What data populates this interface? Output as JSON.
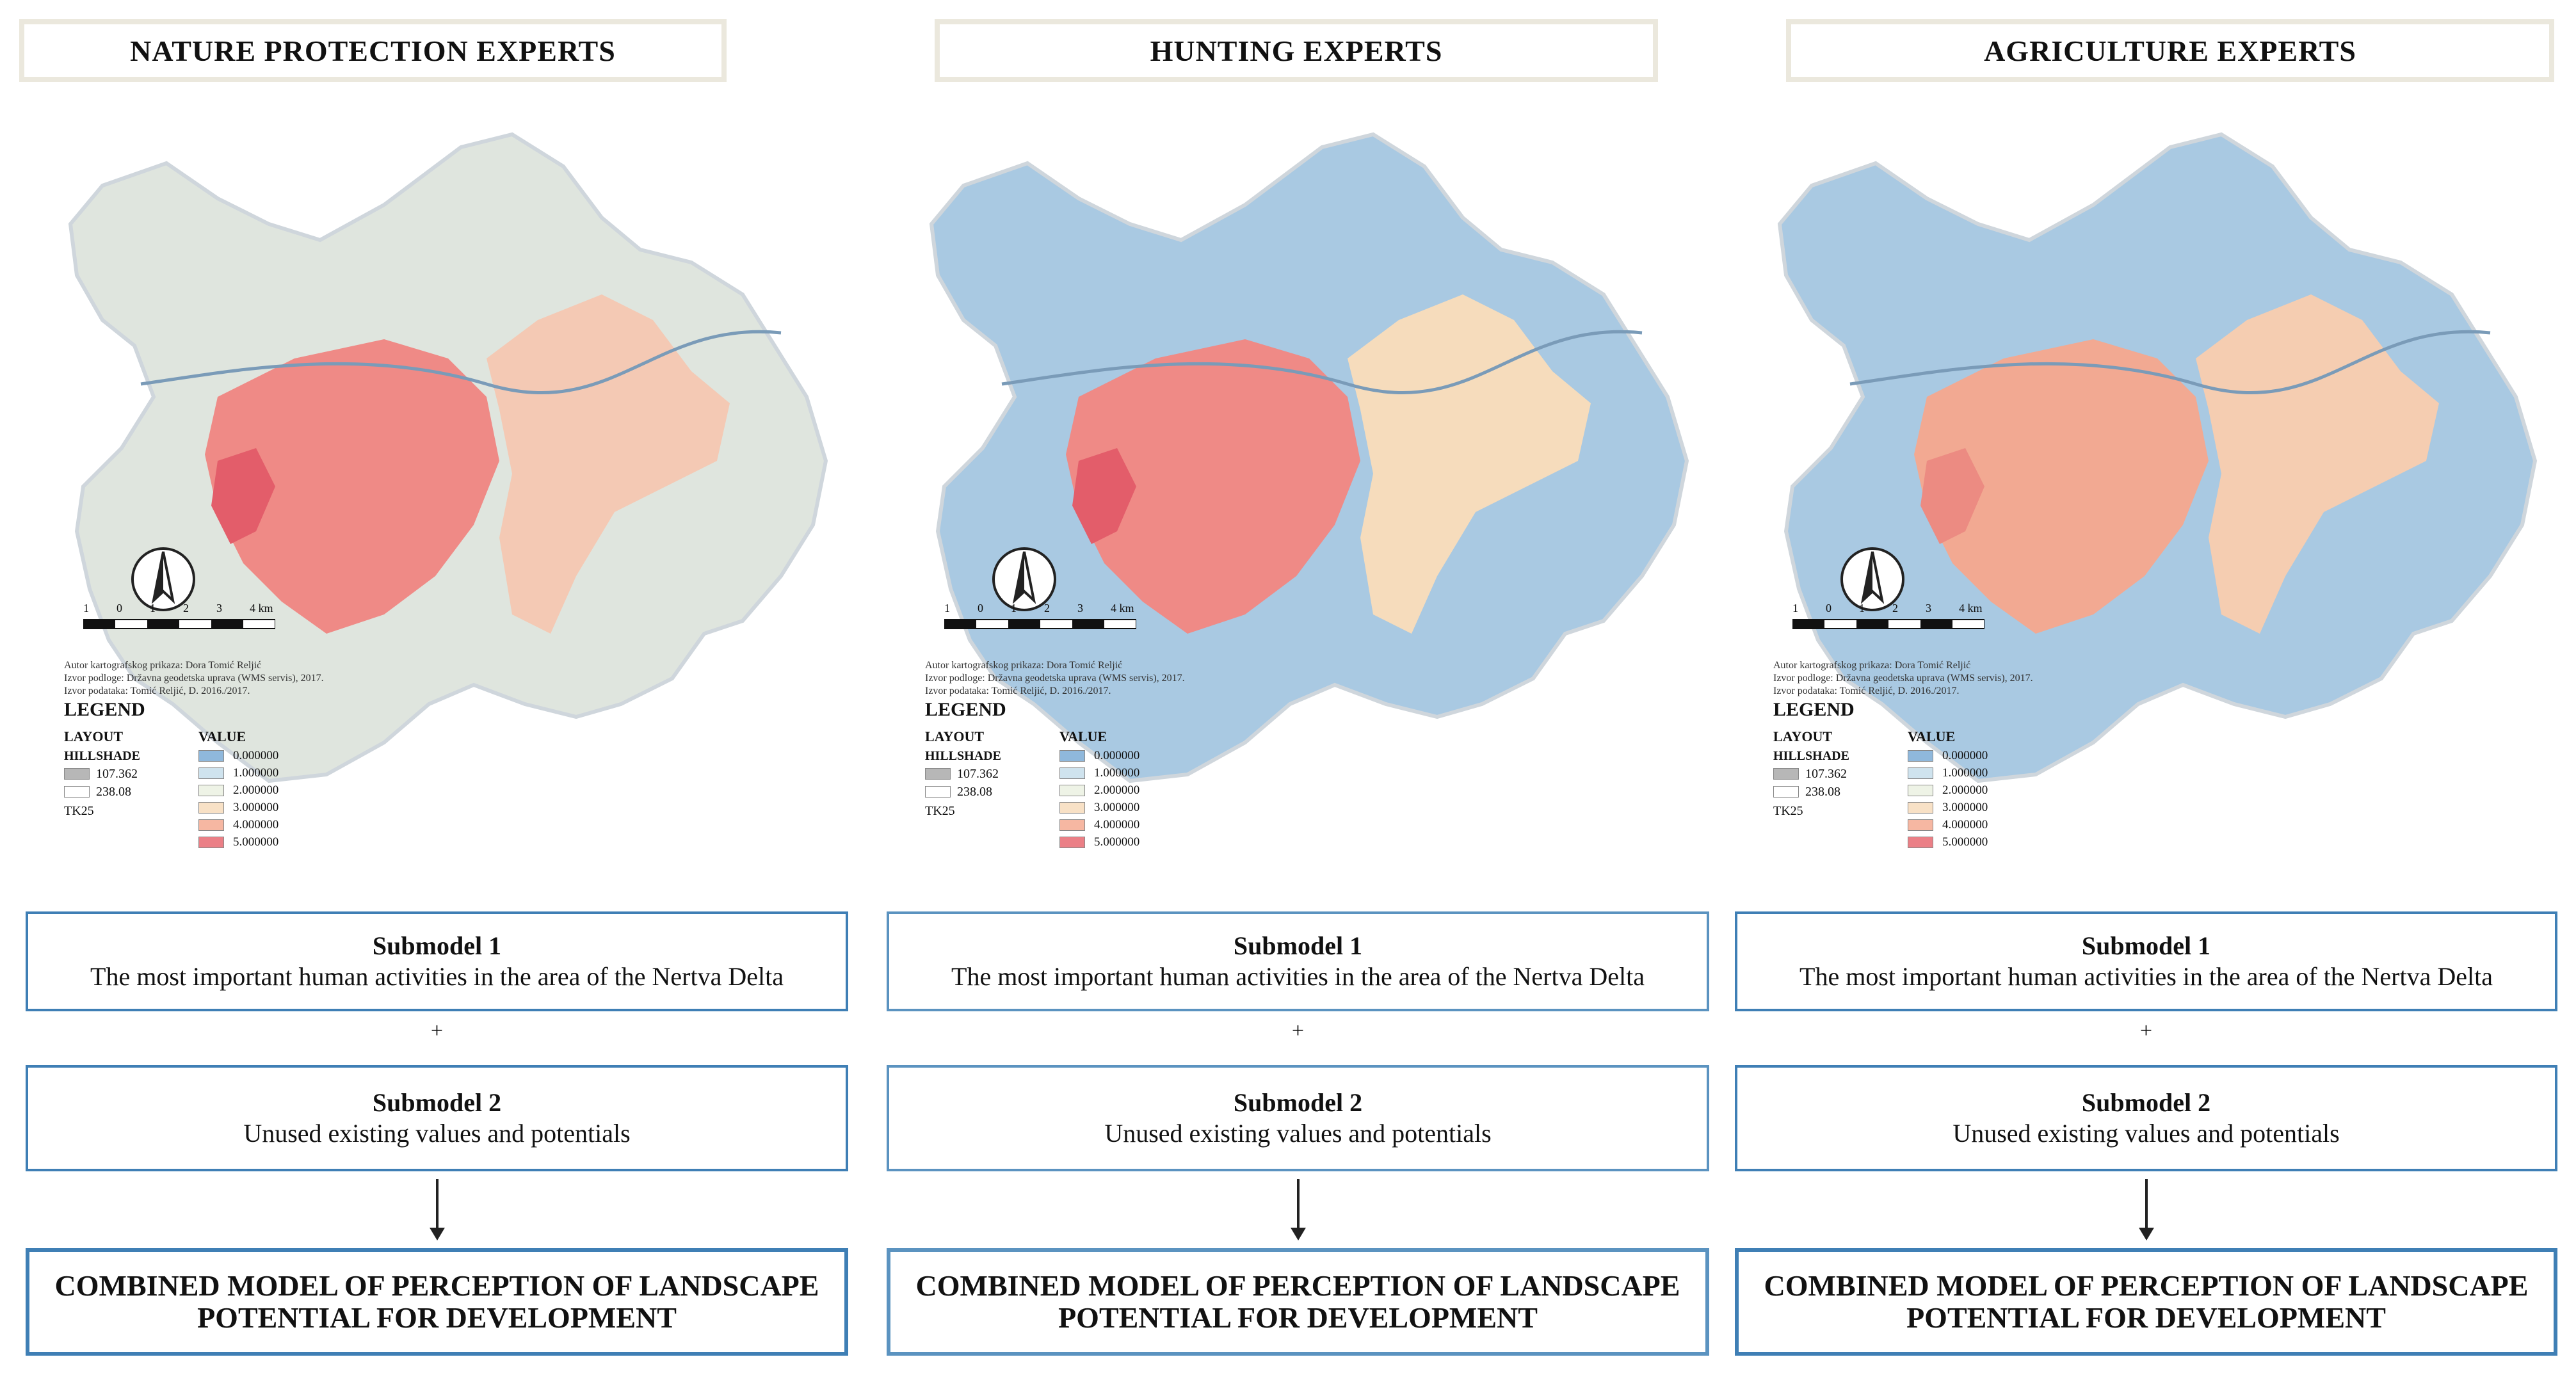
{
  "panels": [
    {
      "title": "NATURE PROTECTION EXPERTS",
      "base_fill": "#dfe5de",
      "pink_fill": "#ef8a86",
      "peach_fill": "#f4c9b4",
      "highlight_fill": "#e35d6a",
      "frame_color": "#3f7fb5"
    },
    {
      "title": "HUNTING EXPERTS",
      "base_fill": "#a9c9e2",
      "pink_fill": "#ef8a86",
      "peach_fill": "#f6dcbc",
      "highlight_fill": "#e35d6a",
      "frame_color": "#5b93c0"
    },
    {
      "title": "AGRICULTURE EXPERTS",
      "base_fill": "#a9c9e2",
      "pink_fill": "#f2a992",
      "peach_fill": "#f5cdb1",
      "highlight_fill": "#ec8b82",
      "frame_color": "#3f7fb5"
    }
  ],
  "map": {
    "scale_ticks": [
      "1",
      "0",
      "1",
      "2",
      "3",
      "4 km"
    ],
    "credits": [
      "Autor kartografskog prikaza: Dora Tomić Reljić",
      "Izvor podloge: Državna geodetska uprava (WMS servis), 2017.",
      "Izvor podataka: Tomić Reljić, D. 2016./2017."
    ],
    "legend": {
      "title": "LEGEND",
      "layout_label": "LAYOUT",
      "hillshade_label": "HILLSHADE",
      "hillshade_high": "107.362",
      "hillshade_low": "238.08",
      "tk_label": "TK25",
      "value_label": "VALUE",
      "values": [
        {
          "label": "0.000000",
          "color": "#8fb8dc"
        },
        {
          "label": "1.000000",
          "color": "#cfe3ee"
        },
        {
          "label": "2.000000",
          "color": "#eef3e6"
        },
        {
          "label": "3.000000",
          "color": "#f8e1c6"
        },
        {
          "label": "4.000000",
          "color": "#f6b7a2"
        },
        {
          "label": "5.000000",
          "color": "#eb7f86"
        }
      ]
    }
  },
  "submodel1": {
    "title": "Submodel 1",
    "text": "The most important human activities in the area of the Nertva Delta"
  },
  "plus": "+",
  "submodel2": {
    "title": "Submodel 2",
    "text": "Unused existing values and potentials"
  },
  "combined": {
    "line1": "COMBINED MODEL OF PERCEPTION OF LANDSCAPE",
    "line2": "POTENTIAL FOR DEVELOPMENT"
  }
}
